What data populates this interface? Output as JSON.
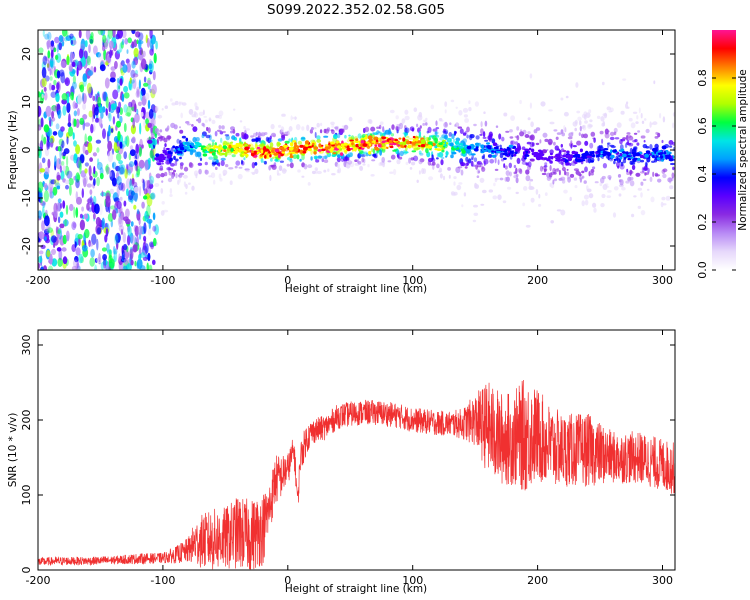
{
  "figure_title": "S099.2022.352.02.58.G05",
  "colors": {
    "spectrum": [
      "#ffffff",
      "#e6d8fb",
      "#b88af5",
      "#8a2be2",
      "#5a00ff",
      "#0000ff",
      "#00a0ff",
      "#00e5e5",
      "#00ff40",
      "#b0ff00",
      "#ffff00",
      "#ff8000",
      "#ff0000",
      "#ff1493"
    ],
    "snr_line": "#f03030"
  },
  "chart_data": [
    {
      "type": "heatmap",
      "title": "",
      "xlabel": "Height of straight line (km)",
      "ylabel": "Frequency (Hz)",
      "xlim": [
        -200,
        310
      ],
      "ylim": [
        -25,
        25
      ],
      "xticks": [
        -200,
        -100,
        0,
        100,
        200,
        300
      ],
      "yticks": [
        -20,
        -10,
        0,
        10,
        20
      ],
      "ytick_labels": [
        "-20",
        "-10",
        "0",
        "10",
        "20"
      ],
      "colorbar": {
        "label": "Normalized spectral amplitude",
        "range": [
          0,
          1
        ],
        "ticks": [
          0.0,
          0.2,
          0.4,
          0.6,
          0.8
        ],
        "tick_labels": [
          "0.0",
          "0.2",
          "0.4",
          "0.6",
          "0.8"
        ]
      },
      "ridge": {
        "x": [
          -105,
          -90,
          -75,
          -60,
          -45,
          -30,
          -15,
          0,
          15,
          30,
          45,
          60,
          75,
          90,
          105,
          120,
          135,
          150,
          165,
          180,
          195,
          210,
          225,
          240,
          255,
          270,
          285,
          300,
          310
        ],
        "frequency": [
          -1.5,
          -0.5,
          1.0,
          0.0,
          0.5,
          -0.3,
          -0.3,
          0.0,
          0.3,
          0.7,
          0.9,
          1.2,
          1.5,
          1.5,
          1.3,
          1.0,
          0.5,
          0.3,
          0.0,
          -0.5,
          -1.0,
          -1.2,
          -1.5,
          -1.2,
          -0.5,
          -1.0,
          -1.2,
          -0.8,
          -1.0
        ],
        "peak_amplitude": [
          0.35,
          0.45,
          0.55,
          0.8,
          0.85,
          0.95,
          0.95,
          0.95,
          0.9,
          0.95,
          0.95,
          0.95,
          0.95,
          0.95,
          0.9,
          0.75,
          0.6,
          0.5,
          0.45,
          0.4,
          0.35,
          0.35,
          0.35,
          0.4,
          0.45,
          0.45,
          0.45,
          0.45,
          0.45
        ]
      },
      "noise_region": {
        "x_from": -200,
        "x_to": -105,
        "amplitude": 0.2
      }
    },
    {
      "type": "line",
      "title": "",
      "xlabel": "Height of straight line (km)",
      "ylabel": "SNR (10 * v/v)",
      "xlim": [
        -200,
        310
      ],
      "ylim": [
        0,
        320
      ],
      "xticks": [
        -200,
        -100,
        0,
        100,
        200,
        300
      ],
      "yticks": [
        0,
        100,
        200,
        300
      ],
      "series": [
        {
          "x": [
            -200,
            -180,
            -160,
            -140,
            -120,
            -100,
            -90,
            -80,
            -75,
            -70,
            -60,
            -50,
            -40,
            -30,
            -20,
            -15,
            -10,
            -5,
            0,
            5,
            8,
            10,
            15,
            20,
            30,
            40,
            50,
            60,
            70,
            80,
            90,
            100,
            110,
            120,
            130,
            140,
            150,
            160,
            170,
            180,
            190,
            200,
            210,
            220,
            230,
            240,
            250,
            260,
            270,
            280,
            290,
            300,
            310
          ],
          "mean": [
            11,
            12,
            12,
            13,
            15,
            16,
            20,
            26,
            35,
            38,
            40,
            42,
            50,
            45,
            55,
            80,
            120,
            125,
            135,
            160,
            90,
            150,
            175,
            185,
            190,
            205,
            208,
            210,
            210,
            208,
            205,
            200,
            198,
            196,
            195,
            195,
            200,
            190,
            175,
            175,
            180,
            180,
            165,
            160,
            160,
            160,
            155,
            150,
            150,
            150,
            145,
            140,
            135
          ],
          "noise": [
            4,
            4,
            4,
            4,
            5,
            5,
            8,
            12,
            20,
            25,
            30,
            30,
            35,
            35,
            35,
            25,
            25,
            20,
            15,
            15,
            10,
            15,
            15,
            12,
            12,
            12,
            12,
            12,
            12,
            12,
            12,
            12,
            12,
            12,
            12,
            15,
            25,
            45,
            45,
            45,
            55,
            45,
            40,
            35,
            35,
            35,
            30,
            25,
            25,
            25,
            25,
            25,
            25
          ]
        }
      ]
    }
  ]
}
